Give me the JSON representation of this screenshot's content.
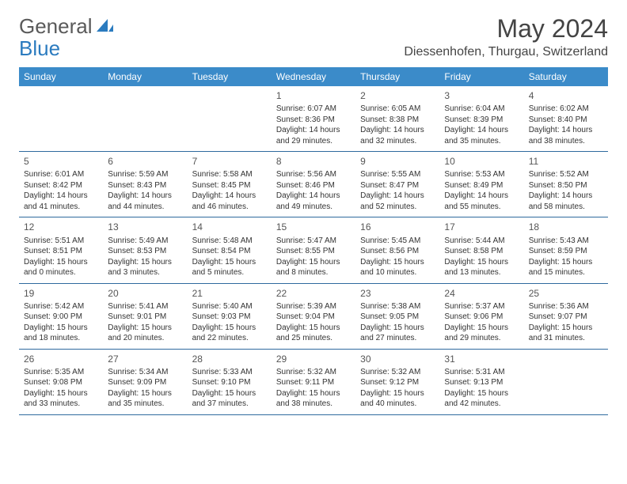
{
  "logo": {
    "word1": "General",
    "word2": "Blue"
  },
  "title": "May 2024",
  "location": "Diessenhofen, Thurgau, Switzerland",
  "weekdays": [
    "Sunday",
    "Monday",
    "Tuesday",
    "Wednesday",
    "Thursday",
    "Friday",
    "Saturday"
  ],
  "colors": {
    "header_bg": "#3b8bc9",
    "header_text": "#ffffff",
    "border": "#2f6a9e",
    "logo_gray": "#5a5a5a",
    "logo_blue": "#2b7bbf"
  },
  "weeks": [
    [
      null,
      null,
      null,
      {
        "n": "1",
        "sr": "6:07 AM",
        "ss": "8:36 PM",
        "dh": "14",
        "dm": "29"
      },
      {
        "n": "2",
        "sr": "6:05 AM",
        "ss": "8:38 PM",
        "dh": "14",
        "dm": "32"
      },
      {
        "n": "3",
        "sr": "6:04 AM",
        "ss": "8:39 PM",
        "dh": "14",
        "dm": "35"
      },
      {
        "n": "4",
        "sr": "6:02 AM",
        "ss": "8:40 PM",
        "dh": "14",
        "dm": "38"
      }
    ],
    [
      {
        "n": "5",
        "sr": "6:01 AM",
        "ss": "8:42 PM",
        "dh": "14",
        "dm": "41"
      },
      {
        "n": "6",
        "sr": "5:59 AM",
        "ss": "8:43 PM",
        "dh": "14",
        "dm": "44"
      },
      {
        "n": "7",
        "sr": "5:58 AM",
        "ss": "8:45 PM",
        "dh": "14",
        "dm": "46"
      },
      {
        "n": "8",
        "sr": "5:56 AM",
        "ss": "8:46 PM",
        "dh": "14",
        "dm": "49"
      },
      {
        "n": "9",
        "sr": "5:55 AM",
        "ss": "8:47 PM",
        "dh": "14",
        "dm": "52"
      },
      {
        "n": "10",
        "sr": "5:53 AM",
        "ss": "8:49 PM",
        "dh": "14",
        "dm": "55"
      },
      {
        "n": "11",
        "sr": "5:52 AM",
        "ss": "8:50 PM",
        "dh": "14",
        "dm": "58"
      }
    ],
    [
      {
        "n": "12",
        "sr": "5:51 AM",
        "ss": "8:51 PM",
        "dh": "15",
        "dm": "0"
      },
      {
        "n": "13",
        "sr": "5:49 AM",
        "ss": "8:53 PM",
        "dh": "15",
        "dm": "3"
      },
      {
        "n": "14",
        "sr": "5:48 AM",
        "ss": "8:54 PM",
        "dh": "15",
        "dm": "5"
      },
      {
        "n": "15",
        "sr": "5:47 AM",
        "ss": "8:55 PM",
        "dh": "15",
        "dm": "8"
      },
      {
        "n": "16",
        "sr": "5:45 AM",
        "ss": "8:56 PM",
        "dh": "15",
        "dm": "10"
      },
      {
        "n": "17",
        "sr": "5:44 AM",
        "ss": "8:58 PM",
        "dh": "15",
        "dm": "13"
      },
      {
        "n": "18",
        "sr": "5:43 AM",
        "ss": "8:59 PM",
        "dh": "15",
        "dm": "15"
      }
    ],
    [
      {
        "n": "19",
        "sr": "5:42 AM",
        "ss": "9:00 PM",
        "dh": "15",
        "dm": "18"
      },
      {
        "n": "20",
        "sr": "5:41 AM",
        "ss": "9:01 PM",
        "dh": "15",
        "dm": "20"
      },
      {
        "n": "21",
        "sr": "5:40 AM",
        "ss": "9:03 PM",
        "dh": "15",
        "dm": "22"
      },
      {
        "n": "22",
        "sr": "5:39 AM",
        "ss": "9:04 PM",
        "dh": "15",
        "dm": "25"
      },
      {
        "n": "23",
        "sr": "5:38 AM",
        "ss": "9:05 PM",
        "dh": "15",
        "dm": "27"
      },
      {
        "n": "24",
        "sr": "5:37 AM",
        "ss": "9:06 PM",
        "dh": "15",
        "dm": "29"
      },
      {
        "n": "25",
        "sr": "5:36 AM",
        "ss": "9:07 PM",
        "dh": "15",
        "dm": "31"
      }
    ],
    [
      {
        "n": "26",
        "sr": "5:35 AM",
        "ss": "9:08 PM",
        "dh": "15",
        "dm": "33"
      },
      {
        "n": "27",
        "sr": "5:34 AM",
        "ss": "9:09 PM",
        "dh": "15",
        "dm": "35"
      },
      {
        "n": "28",
        "sr": "5:33 AM",
        "ss": "9:10 PM",
        "dh": "15",
        "dm": "37"
      },
      {
        "n": "29",
        "sr": "5:32 AM",
        "ss": "9:11 PM",
        "dh": "15",
        "dm": "38"
      },
      {
        "n": "30",
        "sr": "5:32 AM",
        "ss": "9:12 PM",
        "dh": "15",
        "dm": "40"
      },
      {
        "n": "31",
        "sr": "5:31 AM",
        "ss": "9:13 PM",
        "dh": "15",
        "dm": "42"
      },
      null
    ]
  ]
}
